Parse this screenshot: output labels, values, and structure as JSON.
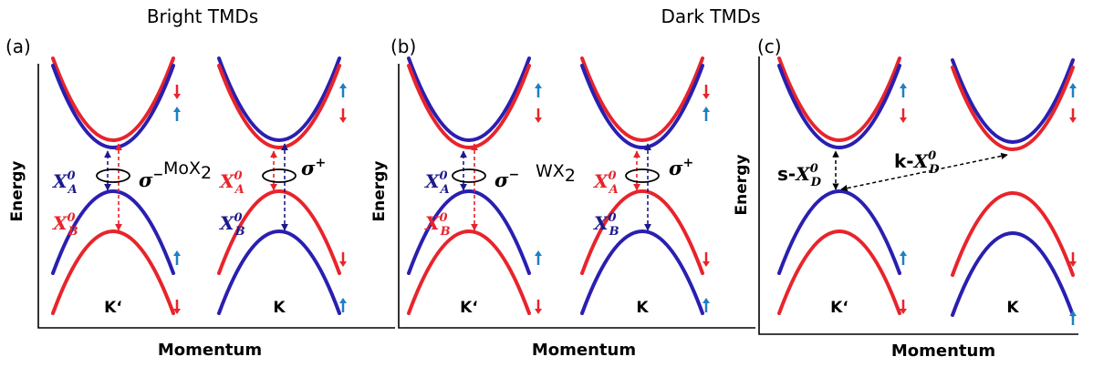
{
  "figure": {
    "headers": {
      "bright": "Bright TMDs",
      "dark": "Dark TMDs"
    },
    "colors": {
      "red": "#e8242b",
      "blue": "#2a1fb0",
      "navy": "#1d1a8c",
      "spin_blue": "#1f7fc2",
      "axis": "#000000"
    },
    "panels": [
      {
        "id": "a",
        "label": "(a)",
        "material": "MoX",
        "material_sub": "2",
        "ylabel": "Energy",
        "xlabel": "Momentum",
        "valleys": [
          {
            "name": "K‘",
            "cb_upper": "red",
            "cb_lower": "blue",
            "vb_upper": "blue",
            "vb_lower": "red",
            "spins": [
              [
                "down",
                "red"
              ],
              [
                "up",
                "spin_blue"
              ],
              [
                "up",
                "spin_blue"
              ],
              [
                "down",
                "red"
              ]
            ],
            "excitons": [
              {
                "sym": "X",
                "sup": "0",
                "sub": "A",
                "color": "navy",
                "side": "left"
              },
              {
                "sym": "X",
                "sup": "0",
                "sub": "B",
                "color": "red",
                "side": "left"
              }
            ],
            "polarization": {
              "sym": "σ",
              "sup": "−",
              "side": "right"
            }
          },
          {
            "name": "K",
            "cb_upper": "blue",
            "cb_lower": "red",
            "vb_upper": "red",
            "vb_lower": "blue",
            "spins": [
              [
                "up",
                "spin_blue"
              ],
              [
                "down",
                "red"
              ],
              [
                "down",
                "red"
              ],
              [
                "up",
                "spin_blue"
              ]
            ],
            "excitons": [
              {
                "sym": "X",
                "sup": "0",
                "sub": "A",
                "color": "red",
                "side": "left"
              },
              {
                "sym": "X",
                "sup": "0",
                "sub": "B",
                "color": "navy",
                "side": "left"
              }
            ],
            "polarization": {
              "sym": "σ",
              "sup": "+",
              "side": "right"
            }
          }
        ]
      },
      {
        "id": "b",
        "label": "(b)",
        "material": "WX",
        "material_sub": "2",
        "ylabel": "Energy",
        "xlabel": "Momentum",
        "valleys": [
          {
            "name": "K‘",
            "cb_upper": "blue",
            "cb_lower": "red",
            "vb_upper": "blue",
            "vb_lower": "red",
            "spins": [
              [
                "up",
                "spin_blue"
              ],
              [
                "down",
                "red"
              ],
              [
                "up",
                "spin_blue"
              ],
              [
                "down",
                "red"
              ]
            ],
            "excitons": [
              {
                "sym": "X",
                "sup": "0",
                "sub": "A",
                "color": "navy",
                "side": "left"
              },
              {
                "sym": "X",
                "sup": "0",
                "sub": "B",
                "color": "red",
                "side": "left"
              }
            ],
            "polarization": {
              "sym": "σ",
              "sup": "−",
              "side": "right"
            }
          },
          {
            "name": "K",
            "cb_upper": "red",
            "cb_lower": "blue",
            "vb_upper": "red",
            "vb_lower": "blue",
            "spins": [
              [
                "down",
                "red"
              ],
              [
                "up",
                "spin_blue"
              ],
              [
                "down",
                "red"
              ],
              [
                "up",
                "spin_blue"
              ]
            ],
            "excitons": [
              {
                "sym": "X",
                "sup": "0",
                "sub": "A",
                "color": "red",
                "side": "left"
              },
              {
                "sym": "X",
                "sup": "0",
                "sub": "B",
                "color": "navy",
                "side": "left"
              }
            ],
            "polarization": {
              "sym": "σ",
              "sup": "+",
              "side": "right"
            }
          }
        ]
      },
      {
        "id": "c",
        "label": "(c)",
        "ylabel": "Energy",
        "xlabel": "Momentum",
        "valleys": [
          {
            "name": "K‘",
            "cb_upper": "red",
            "cb_lower": "blue",
            "vb_upper": "blue",
            "vb_lower": "red",
            "spins": [
              [
                "up",
                "spin_blue"
              ],
              [
                "down",
                "red"
              ],
              [
                "up",
                "spin_blue"
              ],
              [
                "down",
                "red"
              ]
            ]
          },
          {
            "name": "K",
            "cb_upper": "blue",
            "cb_lower": "red",
            "vb_upper": "red",
            "vb_lower": "blue",
            "spins": [
              [
                "up",
                "spin_blue"
              ],
              [
                "down",
                "red"
              ],
              [
                "down",
                "red"
              ],
              [
                "up",
                "spin_blue"
              ]
            ]
          }
        ],
        "dark_excitons": [
          {
            "prefix": "s-",
            "sym": "X",
            "sup": "0",
            "sub": "D",
            "kind": "spin"
          },
          {
            "prefix": "k-",
            "sym": "X",
            "sup": "0",
            "sub": "D",
            "kind": "momentum"
          }
        ]
      }
    ]
  }
}
